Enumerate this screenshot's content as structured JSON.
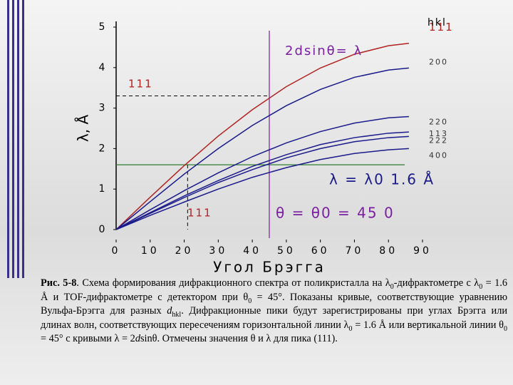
{
  "chart_data": {
    "type": "line",
    "x_label": "Угол Брэгга",
    "y_label": "λ, Å",
    "x": [
      0,
      10,
      20,
      30,
      40,
      50,
      60,
      70,
      80,
      86
    ],
    "series": [
      {
        "name": "111",
        "color": "#b22222",
        "values": [
          0,
          0.8,
          1.58,
          2.31,
          2.96,
          3.53,
          3.99,
          4.33,
          4.54,
          4.6
        ]
      },
      {
        "name": "200",
        "color": "#1a1a8c",
        "values": [
          0,
          0.69,
          1.37,
          2.0,
          2.57,
          3.06,
          3.46,
          3.76,
          3.94,
          3.99
        ]
      },
      {
        "name": "220",
        "color": "#1a1a8c",
        "values": [
          0,
          0.49,
          0.96,
          1.4,
          1.8,
          2.14,
          2.42,
          2.63,
          2.76,
          2.79
        ]
      },
      {
        "name": "113",
        "color": "#1a1a8c",
        "values": [
          0,
          0.42,
          0.83,
          1.21,
          1.56,
          1.85,
          2.1,
          2.27,
          2.38,
          2.41
        ]
      },
      {
        "name": "222",
        "color": "#1a1a8c",
        "values": [
          0,
          0.4,
          0.79,
          1.16,
          1.48,
          1.77,
          2.0,
          2.17,
          2.27,
          2.3
        ]
      },
      {
        "name": "400",
        "color": "#1a1a8c",
        "values": [
          0,
          0.35,
          0.68,
          1.0,
          1.29,
          1.53,
          1.73,
          1.88,
          1.97,
          2.0
        ]
      }
    ],
    "legend_title": "hkl",
    "xlim": [
      0,
      90
    ],
    "xticks": [
      0,
      10,
      20,
      30,
      40,
      50,
      60,
      70,
      80,
      90
    ],
    "ylim": [
      0,
      5
    ],
    "yticks": [
      0,
      1,
      2,
      3,
      4,
      5
    ],
    "lambda0": 1.6,
    "lambda0_color": "#2e7d32",
    "lambda0_label": "λ = λ0  1.6  Å",
    "theta0": 45,
    "theta0_color": "#7b1fa2",
    "theta0_label": "θ = θ0 = 45 0",
    "peak_111_lambda": 3.3,
    "peak_111_theta": 21,
    "peak_111_label": "111",
    "equation": "2dsinθ= λ"
  },
  "caption": [
    {
      "text": "Рис. 5-8",
      "style": "b"
    },
    {
      "text": ". Схема формирования дифракционного спектра от поликристалла на λ",
      "style": ""
    },
    {
      "text": "0",
      "style": "sub"
    },
    {
      "text": "-дифрактометре с λ",
      "style": ""
    },
    {
      "text": "0",
      "style": "sub"
    },
    {
      "text": " = 1.6 Å и TOF-дифрактометре с детектором при θ",
      "style": ""
    },
    {
      "text": "0",
      "style": "sub"
    },
    {
      "text": " = 45°. Показаны кривые, соответствующие уравнению Вульфа-Брэгга для разных ",
      "style": ""
    },
    {
      "text": "d",
      "style": "i"
    },
    {
      "text": "hkl",
      "style": "sub"
    },
    {
      "text": ". Дифракционные пики будут зарегистрированы при углах Брэгга или длинах волн, соответствующих пересечениям горизонтальной линии λ",
      "style": ""
    },
    {
      "text": "0",
      "style": "sub"
    },
    {
      "text": " = 1.6 Å или вертикальной линии θ",
      "style": ""
    },
    {
      "text": "0",
      "style": "sub"
    },
    {
      "text": " = 45° с кривыми λ = 2",
      "style": ""
    },
    {
      "text": "d",
      "style": "i"
    },
    {
      "text": "sinθ. Отмечены значения θ и λ для пика (111).",
      "style": ""
    }
  ]
}
